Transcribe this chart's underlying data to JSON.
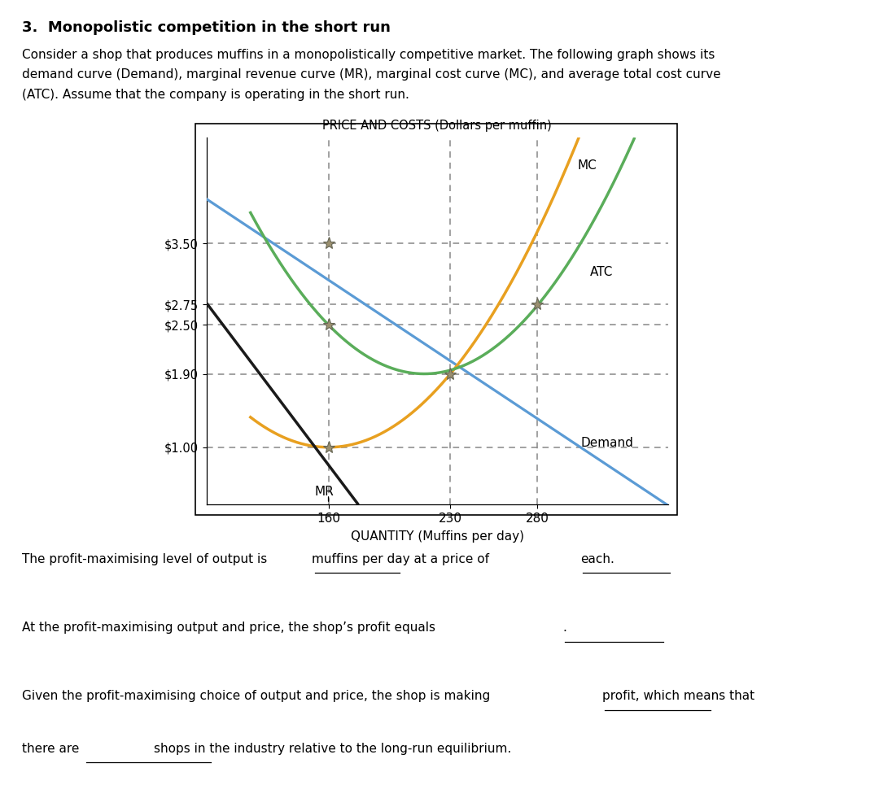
{
  "title": "PRICE AND COSTS (Dollars per muffin)",
  "xlabel": "QUANTITY (Muffins per day)",
  "price_labels": [
    "$3.50",
    "$2.75",
    "$2.50",
    "$1.90",
    "$1.00"
  ],
  "price_values": [
    3.5,
    2.75,
    2.5,
    1.9,
    1.0
  ],
  "qty_ticks": [
    160,
    230,
    280
  ],
  "xlim": [
    90,
    355
  ],
  "ylim": [
    0.3,
    4.8
  ],
  "demand_color": "#5b9bd5",
  "mr_color": "#1a1a1a",
  "mc_color": "#e8a020",
  "atc_color": "#5aad5a",
  "dashed_color": "#888888",
  "marker_color": "#9b9070",
  "heading": "3.  Monopolistic competition in the short run",
  "body_line1": "Consider a shop that produces muffins in a monopolistically competitive market. The following graph shows its",
  "body_line2": "demand curve (Demand), marginal revenue curve (MR), marginal cost curve (MC), and average total cost curve",
  "body_line3": "(ATC). Assume that the company is operating in the short run.",
  "q1a": "The profit-maximising level of output is",
  "q1b": "muffins per day at a price of",
  "q1c": "each.",
  "q2a": "At the profit-maximising output and price, the shop’s profit equals",
  "q2b": ".",
  "q3a": "Given the profit-maximising choice of output and price, the shop is making",
  "q3b": "profit, which means that",
  "q4a": "there are",
  "q4b": "shops in the industry relative to the long-run equilibrium."
}
